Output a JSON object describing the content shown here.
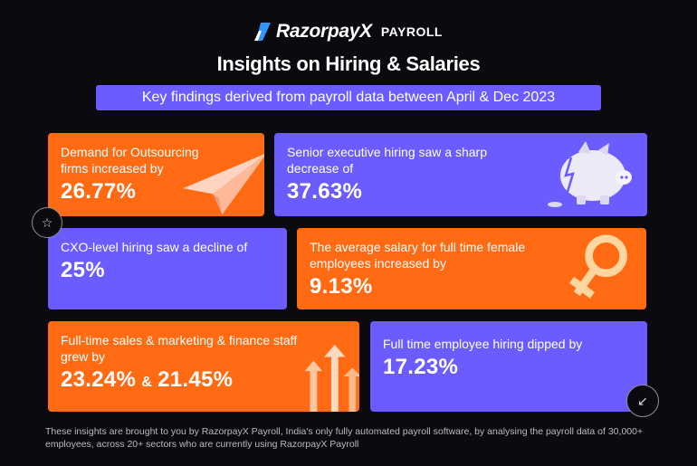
{
  "brand": {
    "name": "RazorpayX",
    "product": "PAYROLL"
  },
  "title": "Insights on Hiring & Salaries",
  "subtitle": "Key findings derived from payroll data between April & Dec 2023",
  "cards": [
    {
      "label": "Demand for Outsourcing firms increased by",
      "value": "26.77%",
      "color": "#ff6a13",
      "icon": "paper-plane-icon"
    },
    {
      "label": "Senior executive hiring saw a sharp decrease of",
      "value": "37.63%",
      "color": "#6b5cff",
      "icon": "piggy-bank-icon"
    },
    {
      "label": "CXO-level hiring saw a decline of",
      "value": "25%",
      "color": "#6b5cff"
    },
    {
      "label": "The average salary for full time female employees increased by",
      "value": "9.13%",
      "color": "#ff6a13",
      "icon": "female-symbol-icon"
    },
    {
      "label": "Full-time sales & marketing & finance staff grew by",
      "value": "23.24%",
      "amp": "&",
      "value2": "21.45%",
      "color": "#ff6a13",
      "icon": "up-arrows-icon"
    },
    {
      "label": "Full time employee hiring dipped by",
      "value": "17.23%",
      "color": "#6b5cff"
    }
  ],
  "decorations": {
    "star": "☆",
    "arrow": "↙"
  },
  "footer": "These insights are brought to you by RazorpayX Payroll, India's only fully automated payroll software, by analysing the payroll data of 30,000+ employees, across 20+ sectors who are currently using RazorpayX Payroll"
}
